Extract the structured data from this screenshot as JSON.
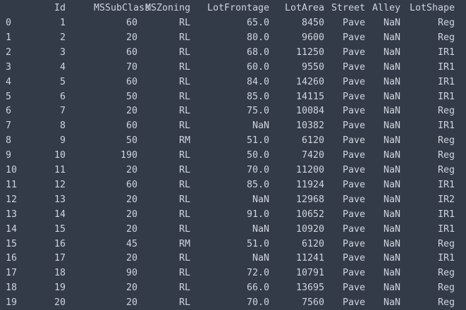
{
  "columns": [
    "Id",
    "MSSubClass",
    "MSZoning",
    "LotFrontage",
    "LotArea",
    "Street",
    "Alley",
    "LotShape"
  ],
  "rows": [
    {
      "index": "0",
      "values": [
        "1",
        "60",
        "RL",
        "65.0",
        "8450",
        "Pave",
        "NaN",
        "Reg"
      ]
    },
    {
      "index": "1",
      "values": [
        "2",
        "20",
        "RL",
        "80.0",
        "9600",
        "Pave",
        "NaN",
        "Reg"
      ]
    },
    {
      "index": "2",
      "values": [
        "3",
        "60",
        "RL",
        "68.0",
        "11250",
        "Pave",
        "NaN",
        "IR1"
      ]
    },
    {
      "index": "3",
      "values": [
        "4",
        "70",
        "RL",
        "60.0",
        "9550",
        "Pave",
        "NaN",
        "IR1"
      ]
    },
    {
      "index": "4",
      "values": [
        "5",
        "60",
        "RL",
        "84.0",
        "14260",
        "Pave",
        "NaN",
        "IR1"
      ]
    },
    {
      "index": "5",
      "values": [
        "6",
        "50",
        "RL",
        "85.0",
        "14115",
        "Pave",
        "NaN",
        "IR1"
      ]
    },
    {
      "index": "6",
      "values": [
        "7",
        "20",
        "RL",
        "75.0",
        "10084",
        "Pave",
        "NaN",
        "Reg"
      ]
    },
    {
      "index": "7",
      "values": [
        "8",
        "60",
        "RL",
        "NaN",
        "10382",
        "Pave",
        "NaN",
        "IR1"
      ]
    },
    {
      "index": "8",
      "values": [
        "9",
        "50",
        "RM",
        "51.0",
        "6120",
        "Pave",
        "NaN",
        "Reg"
      ]
    },
    {
      "index": "9",
      "values": [
        "10",
        "190",
        "RL",
        "50.0",
        "7420",
        "Pave",
        "NaN",
        "Reg"
      ]
    },
    {
      "index": "10",
      "values": [
        "11",
        "20",
        "RL",
        "70.0",
        "11200",
        "Pave",
        "NaN",
        "Reg"
      ]
    },
    {
      "index": "11",
      "values": [
        "12",
        "60",
        "RL",
        "85.0",
        "11924",
        "Pave",
        "NaN",
        "IR1"
      ]
    },
    {
      "index": "12",
      "values": [
        "13",
        "20",
        "RL",
        "NaN",
        "12968",
        "Pave",
        "NaN",
        "IR2"
      ]
    },
    {
      "index": "13",
      "values": [
        "14",
        "20",
        "RL",
        "91.0",
        "10652",
        "Pave",
        "NaN",
        "IR1"
      ]
    },
    {
      "index": "14",
      "values": [
        "15",
        "20",
        "RL",
        "NaN",
        "10920",
        "Pave",
        "NaN",
        "IR1"
      ]
    },
    {
      "index": "15",
      "values": [
        "16",
        "45",
        "RM",
        "51.0",
        "6120",
        "Pave",
        "NaN",
        "Reg"
      ]
    },
    {
      "index": "16",
      "values": [
        "17",
        "20",
        "RL",
        "NaN",
        "11241",
        "Pave",
        "NaN",
        "IR1"
      ]
    },
    {
      "index": "17",
      "values": [
        "18",
        "90",
        "RL",
        "72.0",
        "10791",
        "Pave",
        "NaN",
        "Reg"
      ]
    },
    {
      "index": "18",
      "values": [
        "19",
        "20",
        "RL",
        "66.0",
        "13695",
        "Pave",
        "NaN",
        "Reg"
      ]
    },
    {
      "index": "19",
      "values": [
        "20",
        "20",
        "RL",
        "70.0",
        "7560",
        "Pave",
        "NaN",
        "Reg"
      ]
    }
  ],
  "colors": {
    "background": "#343b48",
    "text": "#cfd4dc"
  }
}
